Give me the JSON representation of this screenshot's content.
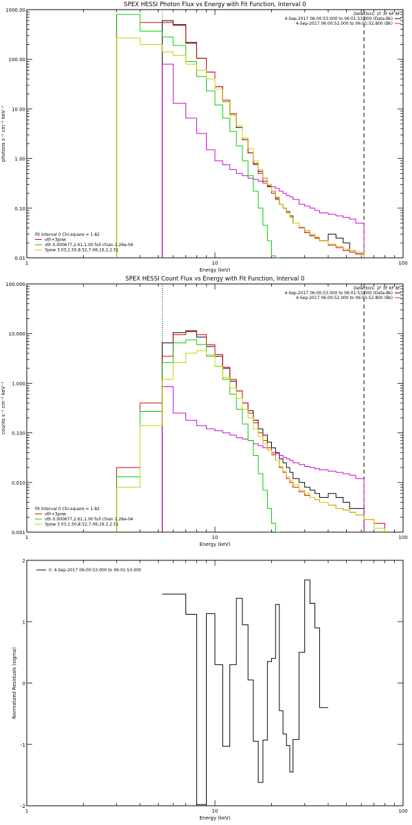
{
  "chart_data": [
    {
      "type": "line",
      "title": "SPEX HESSI Photon Flux vs Energy with Fit Function, Interval 0",
      "xlabel": "Energy (keV)",
      "ylabel": "photons s⁻¹ cm⁻² keV⁻¹",
      "xscale": "log",
      "yscale": "log",
      "xlim": [
        1,
        100
      ],
      "ylim": [
        0.01,
        1000
      ],
      "xticks": [
        {
          "v": 1,
          "label": "1"
        },
        {
          "v": 10,
          "label": "10"
        },
        {
          "v": 100,
          "label": "100"
        }
      ],
      "yticks": [
        {
          "v": 0.01,
          "label": "0.01"
        },
        {
          "v": 0.1,
          "label": "0.10"
        },
        {
          "v": 1,
          "label": "1.00"
        },
        {
          "v": 10,
          "label": "10.00"
        },
        {
          "v": 100,
          "label": "100.00"
        },
        {
          "v": 1000,
          "label": "1000.00"
        }
      ],
      "vlines": [
        {
          "x": 5.25,
          "style": "dotted",
          "color": "#cc00cc"
        },
        {
          "x": 62.0,
          "style": "dashed",
          "color": "#000000"
        }
      ],
      "edges": [
        3.0,
        3.5,
        4.0,
        4.5,
        5.25,
        6.0,
        7.0,
        8.0,
        9.0,
        10.0,
        11.0,
        12.0,
        13.0,
        14.0,
        15.0,
        16.0,
        17.0,
        18.0,
        19.0,
        20.0,
        21.0,
        22.0,
        23.0,
        24.0,
        25.0,
        26.0,
        28.0,
        30.0,
        32.0,
        34.0,
        36.0,
        40.0,
        44.0,
        48.0,
        52.0,
        56.0,
        62.0
      ],
      "series": [
        {
          "name": "4-Sep-2017 06:00:53.000 to 06:01:53.000 (Data-Bk)",
          "color": "#000000",
          "values": [
            null,
            null,
            null,
            null,
            600,
            500,
            210,
            105,
            55,
            28,
            14,
            7.5,
            4.2,
            2.4,
            1.3,
            0.8,
            0.55,
            0.4,
            0.28,
            0.22,
            0.16,
            0.12,
            0.1,
            0.085,
            0.07,
            0.05,
            0.04,
            0.035,
            0.028,
            0.025,
            0.022,
            0.03,
            0.025,
            0.02,
            0.014,
            0.012,
            null
          ]
        },
        {
          "name": "4-Sep-2017 06:00:52.000 to 06:01:52.800 (Bk)",
          "color": "#cc00cc",
          "values": [
            null,
            null,
            null,
            null,
            80,
            13,
            6.5,
            3.2,
            1.5,
            0.9,
            0.75,
            0.6,
            0.5,
            0.45,
            0.4,
            0.38,
            0.35,
            0.32,
            0.3,
            0.27,
            0.25,
            0.22,
            0.2,
            0.18,
            0.17,
            0.15,
            0.12,
            0.11,
            0.1,
            0.09,
            0.08,
            0.075,
            0.07,
            0.065,
            0.06,
            0.05,
            null
          ]
        },
        {
          "name": "vth+3pow",
          "color": "#cc0000",
          "values": [
            800,
            800,
            550,
            550,
            550,
            480,
            220,
            105,
            55,
            28,
            15,
            8,
            4.5,
            2.4,
            1.3,
            0.75,
            0.5,
            0.35,
            0.27,
            0.2,
            0.15,
            0.12,
            0.1,
            0.08,
            0.065,
            0.05,
            0.04,
            0.032,
            0.028,
            0.025,
            0.022,
            0.018,
            0.016,
            0.014,
            0.013,
            0.012,
            null
          ]
        },
        {
          "name": "vth 0.000677,2.61,1.00  full chian 1.26e-04",
          "color": "#00cc00",
          "values": [
            800,
            800,
            370,
            370,
            280,
            190,
            90,
            45,
            23,
            12,
            6.5,
            3.5,
            1.8,
            0.9,
            0.45,
            0.22,
            0.1,
            0.045,
            0.022,
            0.011,
            0.01,
            null,
            null,
            null,
            null,
            null,
            null,
            null,
            null,
            null,
            null,
            null,
            null,
            null,
            null,
            null,
            null
          ]
        },
        {
          "name": "3pow 3.03,1.50,8.52,7.06,19.2,2.51",
          "color": "#cccc00",
          "values": [
            270,
            270,
            200,
            200,
            140,
            120,
            80,
            60,
            40,
            25,
            14,
            7.5,
            4.5,
            2.6,
            1.6,
            0.9,
            0.6,
            0.4,
            0.3,
            0.22,
            0.17,
            0.12,
            0.1,
            0.08,
            0.065,
            0.05,
            0.042,
            0.035,
            0.03,
            0.026,
            0.022,
            0.019,
            0.017,
            0.015,
            0.014,
            0.013,
            null
          ]
        }
      ],
      "detectors_label": "Detectors: 1F 3F 6F 8F",
      "legend_left": [
        "Fit Interval 0   Chi-square = 1.82",
        "vth+3pow",
        "vth 0.000677,2.61,1.00  full chian 1.26e-04",
        "3pow 3.03,1.50,8.52,7.06,19.2,2.51"
      ],
      "legend_right": [
        "4-Sep-2017 06:00:53.000 to 06:01:53.000 (Data-Bk)",
        "4-Sep-2017 06:00:52.000 to 06:01:52.800 (Bk)"
      ]
    },
    {
      "type": "line",
      "title": "SPEX HESSI Count Flux vs Energy with Fit Function, Interval 0",
      "xlabel": "Energy (keV)",
      "ylabel": "counts s⁻¹ cm⁻² keV⁻¹",
      "xscale": "log",
      "yscale": "log",
      "xlim": [
        1,
        100
      ],
      "ylim": [
        0.001,
        100
      ],
      "xticks": [
        {
          "v": 1,
          "label": "1"
        },
        {
          "v": 10,
          "label": "10"
        },
        {
          "v": 100,
          "label": "100"
        }
      ],
      "yticks": [
        {
          "v": 0.001,
          "label": "0.001"
        },
        {
          "v": 0.01,
          "label": "0.010"
        },
        {
          "v": 0.1,
          "label": "0.100"
        },
        {
          "v": 1,
          "label": "1.000"
        },
        {
          "v": 10,
          "label": "10.000"
        },
        {
          "v": 100,
          "label": "100.000"
        }
      ],
      "vlines": [
        {
          "x": 5.25,
          "style": "dotted",
          "color": "#000000"
        },
        {
          "x": 62.0,
          "style": "dashed",
          "color": "#000000"
        }
      ],
      "edges": [
        3.0,
        3.5,
        4.0,
        4.5,
        5.25,
        6.0,
        7.0,
        8.0,
        9.0,
        10.0,
        11.0,
        12.0,
        13.0,
        14.0,
        15.0,
        16.0,
        17.0,
        18.0,
        19.0,
        20.0,
        21.0,
        22.0,
        23.0,
        24.0,
        25.0,
        26.0,
        28.0,
        30.0,
        32.0,
        34.0,
        36.0,
        40.0,
        44.0,
        48.0,
        52.0,
        56.0,
        62.0,
        70.0,
        80.0
      ],
      "series": [
        {
          "name": "4-Sep-2017 06:00:53.000 to 06:01:53.000 (Data-Bk)",
          "color": "#000000",
          "values": [
            null,
            null,
            null,
            null,
            6.5,
            10.5,
            11,
            8.5,
            5.5,
            3.5,
            2.0,
            1.1,
            0.7,
            0.4,
            0.28,
            0.18,
            0.12,
            0.09,
            0.065,
            0.05,
            0.04,
            0.03,
            0.025,
            0.02,
            0.016,
            0.012,
            0.01,
            0.008,
            0.007,
            0.006,
            0.005,
            0.006,
            0.005,
            0.004,
            0.003,
            0.003,
            null,
            null
          ]
        },
        {
          "name": "4-Sep-2017 06:00:52.000 to 06:01:52.800 (Bk)",
          "color": "#cc00cc",
          "values": [
            null,
            null,
            null,
            null,
            0.85,
            0.25,
            0.18,
            0.14,
            0.12,
            0.11,
            0.1,
            0.09,
            0.08,
            0.075,
            0.07,
            0.06,
            0.055,
            0.05,
            0.045,
            0.04,
            0.038,
            0.035,
            0.032,
            0.03,
            0.028,
            0.025,
            0.023,
            0.021,
            0.02,
            0.019,
            0.018,
            0.017,
            0.016,
            0.015,
            0.014,
            0.012,
            null,
            null
          ]
        },
        {
          "name": "vth+3pow",
          "color": "#cc0000",
          "values": [
            0.02,
            0.02,
            0.4,
            0.4,
            3.5,
            9.5,
            11.5,
            9.5,
            6.0,
            3.8,
            2.1,
            1.2,
            0.7,
            0.4,
            0.25,
            0.16,
            0.1,
            0.07,
            0.05,
            0.037,
            0.028,
            0.02,
            0.016,
            0.012,
            0.01,
            0.008,
            0.0065,
            0.0055,
            0.005,
            0.0045,
            0.004,
            0.0035,
            0.003,
            0.0028,
            0.0025,
            0.0022,
            0.0018,
            0.0015
          ]
        },
        {
          "name": "vth 0.000677,2.61,1.00  full chian 1.26e-04",
          "color": "#00cc00",
          "values": [
            0.013,
            0.013,
            0.27,
            0.27,
            2.6,
            6.5,
            7.5,
            6.0,
            3.5,
            2.2,
            1.2,
            0.6,
            0.3,
            0.15,
            0.07,
            0.035,
            0.015,
            0.007,
            0.003,
            0.0015,
            0.001,
            null,
            null,
            null,
            null,
            null,
            null,
            null,
            null,
            null,
            null,
            null,
            null,
            null,
            null,
            null,
            null,
            null
          ]
        },
        {
          "name": "3pow 3.03,1.50,8.52,7.06,19.2,2.51",
          "color": "#cccc00",
          "values": [
            0.008,
            0.008,
            0.14,
            0.14,
            1.2,
            2.6,
            4.0,
            4.5,
            3.7,
            2.2,
            1.3,
            0.8,
            0.5,
            0.3,
            0.2,
            0.12,
            0.085,
            0.06,
            0.045,
            0.035,
            0.028,
            0.021,
            0.017,
            0.013,
            0.011,
            0.009,
            0.007,
            0.006,
            0.005,
            0.0045,
            0.004,
            0.0035,
            0.003,
            0.0028,
            0.0025,
            0.0022,
            0.0018,
            0.0012
          ]
        }
      ],
      "detectors_label": "Detectors: 1F 3F 6F 8F",
      "legend_left": [
        "Fit Interval 0   Chi-square = 1.82",
        "vth+3pow",
        "vth 0.000677,2.61,1.00  full chian 1.26e-04",
        "3pow 3.03,1.50,8.52,7.06,19.2,2.51"
      ],
      "legend_right": [
        "4-Sep-2017 06:00:53.000 to 06:01:53.000 (Data-Bk)",
        "4-Sep-2017 06:00:52.000 to 06:01:52.800 (Bk)"
      ]
    },
    {
      "type": "line",
      "title": "",
      "xlabel": "Energy (keV)",
      "ylabel": "Normalized Residuals (sigma)",
      "xscale": "log",
      "yscale": "linear",
      "xlim": [
        1,
        100
      ],
      "ylim": [
        -2,
        2
      ],
      "xticks": [
        {
          "v": 1,
          "label": "1"
        },
        {
          "v": 10,
          "label": "10"
        },
        {
          "v": 100,
          "label": "100"
        }
      ],
      "yticks": [
        {
          "v": -2,
          "label": "-2"
        },
        {
          "v": -1,
          "label": "-1"
        },
        {
          "v": 0,
          "label": "0"
        },
        {
          "v": 1,
          "label": "1"
        },
        {
          "v": 2,
          "label": "2"
        }
      ],
      "edges": [
        5.25,
        6.0,
        7.0,
        8.0,
        9.0,
        10.0,
        11.0,
        12.0,
        13.0,
        14.0,
        15.0,
        16.0,
        17.0,
        18.0,
        19.0,
        20.0,
        21.0,
        22.0,
        23.0,
        24.0,
        25.0,
        26.0,
        28.0,
        30.0,
        32.0,
        34.0,
        36.0,
        40.0,
        44.0,
        48.0,
        52.0,
        56.0,
        62.0,
        70.0,
        80.0
      ],
      "series": [
        {
          "name": "0. 4-Sep-2017 06:00:53.000 to 06:01:53.000",
          "color": "#000000",
          "values": [
            1.45,
            1.45,
            1.12,
            -1.98,
            1.13,
            0.3,
            -1.03,
            0.3,
            1.38,
            0.95,
            0.05,
            -0.95,
            -1.62,
            -0.93,
            0.35,
            0.4,
            1.28,
            -0.45,
            -0.83,
            -1.02,
            -1.45,
            -0.92,
            0.5,
            1.68,
            1.3,
            0.9,
            -0.4,
            null,
            null,
            null,
            null,
            null,
            null,
            null
          ]
        }
      ],
      "legend_left": [
        "0. 4-Sep-2017 06:00:53.000 to 06:01:53.000"
      ]
    }
  ]
}
